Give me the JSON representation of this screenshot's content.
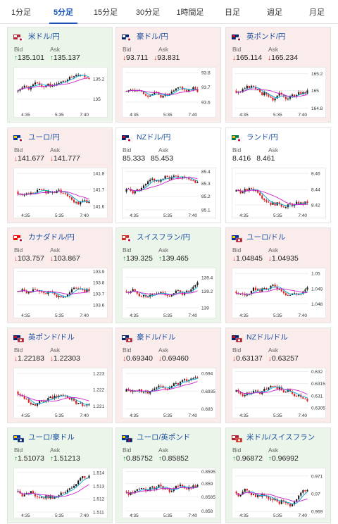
{
  "tabs": [
    "1分足",
    "5分足",
    "15分足",
    "30分足",
    "1時間足",
    "日足",
    "週足",
    "月足"
  ],
  "active_tab": 1,
  "labels": {
    "bid": "Bid",
    "ask": "Ask"
  },
  "colors": {
    "up_candle": "#1a1a1a",
    "down_candle": "#e02020",
    "ma_short": "#00aadd",
    "ma_long": "#cc22cc"
  },
  "cards": [
    {
      "name": "米ドル/円",
      "flag": "us-jp",
      "trend": "up",
      "bid": "135.101",
      "ask": "135.137",
      "ticks": [
        "135.2",
        "135"
      ],
      "tick_pos": [
        0.22,
        0.62
      ],
      "times": [
        "4:35",
        "5:35",
        "7:40"
      ],
      "seed": 1
    },
    {
      "name": "豪ドル/円",
      "flag": "au-jp",
      "trend": "down",
      "bid": "93.711",
      "ask": "93.831",
      "ticks": [
        "93.8",
        "93.7",
        "93.6"
      ],
      "tick_pos": [
        0.1,
        0.38,
        0.68
      ],
      "times": [
        "4:35",
        "5:35",
        "7:40"
      ],
      "seed": 2
    },
    {
      "name": "英ポンド/円",
      "flag": "gb-jp",
      "trend": "down",
      "bid": "165.114",
      "ask": "165.234",
      "ticks": [
        "165.2",
        "165",
        "164.8"
      ],
      "tick_pos": [
        0.12,
        0.45,
        0.8
      ],
      "times": [
        "4:35",
        "5:35",
        "7:40"
      ],
      "seed": 3
    },
    {
      "name": "ユーロ/円",
      "flag": "eu-jp",
      "trend": "down",
      "bid": "141.677",
      "ask": "141.777",
      "ticks": [
        "141.8",
        "141.7",
        "141.6"
      ],
      "tick_pos": [
        0.1,
        0.42,
        0.75
      ],
      "times": [
        "4:35",
        "5:35",
        "7:40"
      ],
      "seed": 4
    },
    {
      "name": "NZドル/円",
      "flag": "nz-jp",
      "trend": "flat",
      "bid": "85.333",
      "ask": "85.453",
      "ticks": [
        "85.4",
        "85.3",
        "85.2",
        "85.1"
      ],
      "tick_pos": [
        0.06,
        0.3,
        0.55,
        0.82
      ],
      "times": [
        "4:35",
        "5:35",
        "7:40"
      ],
      "seed": 5
    },
    {
      "name": "ランド/円",
      "flag": "za-jp",
      "trend": "flat",
      "bid": "8.416",
      "ask": "8.461",
      "ticks": [
        "8.46",
        "8.44",
        "8.42"
      ],
      "tick_pos": [
        0.1,
        0.42,
        0.72
      ],
      "times": [
        "4:35",
        "5:35",
        "7:40"
      ],
      "seed": 6
    },
    {
      "name": "カナダドル/円",
      "flag": "ca-jp",
      "trend": "down",
      "bid": "103.757",
      "ask": "103.867",
      "ticks": [
        "103.9",
        "103.8",
        "103.7",
        "103.6"
      ],
      "tick_pos": [
        0.06,
        0.28,
        0.5,
        0.72
      ],
      "times": [
        "4:35",
        "5:35",
        "7:40"
      ],
      "seed": 7
    },
    {
      "name": "スイスフラン/円",
      "flag": "ch-jp",
      "trend": "up",
      "bid": "139.325",
      "ask": "139.465",
      "ticks": [
        "139.4",
        "139.2",
        "139"
      ],
      "tick_pos": [
        0.18,
        0.45,
        0.78
      ],
      "times": [
        "4:35",
        "5:35",
        "7:40"
      ],
      "seed": 8
    },
    {
      "name": "ユーロ/ドル",
      "flag": "eu-us",
      "trend": "down",
      "bid": "1.04845",
      "ask": "1.04935",
      "ticks": [
        "1.05",
        "1.049",
        "1.048"
      ],
      "tick_pos": [
        0.1,
        0.4,
        0.7
      ],
      "times": [
        "4:35",
        "5:35",
        "7:40"
      ],
      "seed": 9
    },
    {
      "name": "英ポンド/ドル",
      "flag": "gb-us",
      "trend": "down",
      "bid": "1.22183",
      "ask": "1.22303",
      "ticks": [
        "1.223",
        "1.222",
        "1.221"
      ],
      "tick_pos": [
        0.1,
        0.42,
        0.74
      ],
      "times": [
        "4:35",
        "5:35",
        "7:40"
      ],
      "seed": 10
    },
    {
      "name": "豪ドル/ドル",
      "flag": "au-us",
      "trend": "down",
      "bid": "0.69340",
      "ask": "0.69460",
      "ticks": [
        "0.694",
        "0.6935",
        "0.693"
      ],
      "tick_pos": [
        0.1,
        0.45,
        0.8
      ],
      "times": [
        "4:35",
        "5:35",
        "7:40"
      ],
      "seed": 11
    },
    {
      "name": "NZドル/ドル",
      "flag": "nz-us",
      "trend": "down",
      "bid": "0.63137",
      "ask": "0.63257",
      "ticks": [
        "0.632",
        "0.6315",
        "0.631",
        "0.6305"
      ],
      "tick_pos": [
        0.06,
        0.3,
        0.54,
        0.78
      ],
      "times": [
        "4:35",
        "5:35",
        "7:40"
      ],
      "seed": 12
    },
    {
      "name": "ユーロ/豪ドル",
      "flag": "eu-au",
      "trend": "up",
      "bid": "1.51073",
      "ask": "1.51213",
      "ticks": [
        "1.514",
        "1.513",
        "1.512",
        "1.511"
      ],
      "tick_pos": [
        0.08,
        0.35,
        0.6,
        0.86
      ],
      "times": [
        "4:35",
        "5:35",
        "7:40"
      ],
      "seed": 13
    },
    {
      "name": "ユーロ/英ポンド",
      "flag": "eu-gb",
      "trend": "up",
      "bid": "0.85752",
      "ask": "0.85852",
      "ticks": [
        "0.8595",
        "0.859",
        "0.8585",
        "0.858"
      ],
      "tick_pos": [
        0.06,
        0.3,
        0.56,
        0.84
      ],
      "times": [
        "4:35",
        "5:35",
        "7:40"
      ],
      "seed": 14
    },
    {
      "name": "米ドル/スイスフラン",
      "flag": "us-ch",
      "trend": "up",
      "bid": "0.96872",
      "ask": "0.96992",
      "ticks": [
        "0.971",
        "0.97",
        "0.969"
      ],
      "tick_pos": [
        0.15,
        0.5,
        0.85
      ],
      "times": [
        "4:35",
        "5:35",
        "7:40"
      ],
      "seed": 15
    }
  ]
}
